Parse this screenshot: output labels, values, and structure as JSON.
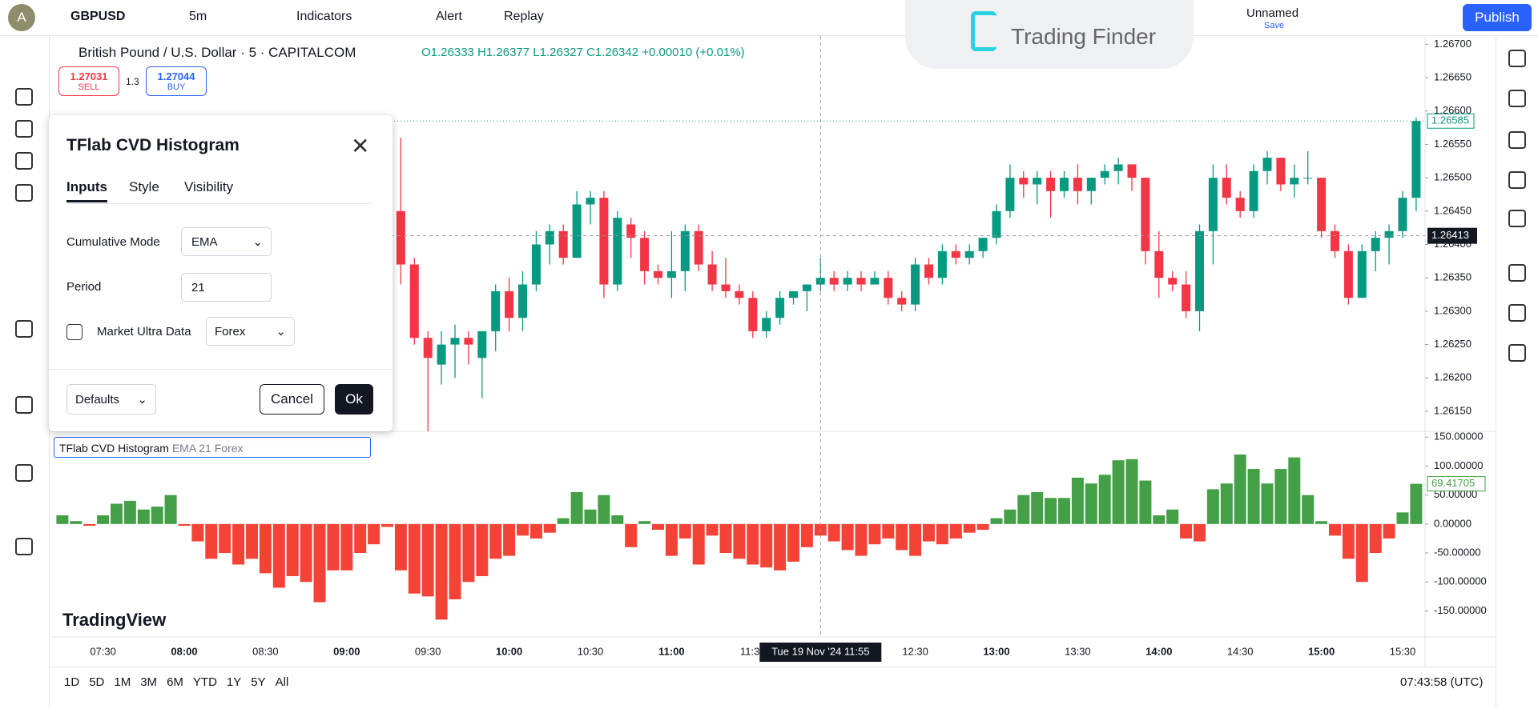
{
  "topbar": {
    "avatar": "A",
    "symbol": "GBPUSD",
    "interval": "5m",
    "indicators": "Indicators",
    "alert": "Alert",
    "replay": "Replay",
    "layout_name": "Unnamed",
    "layout_status": "Save",
    "publish": "Publish"
  },
  "watermark": "Trading Finder",
  "legend": {
    "title": "British Pound / U.S. Dollar · 5 · CAPITALCOM",
    "ohlc": "O1.26333 H1.26377 L1.26327 C1.26342 +0.00010 (+0.01%)",
    "sell_price": "1.27031",
    "sell": "SELL",
    "spread": "1.3",
    "buy_price": "1.27044",
    "buy": "BUY"
  },
  "dialog": {
    "title": "TFlab CVD Histogram",
    "tabs": [
      "Inputs",
      "Style",
      "Visibility"
    ],
    "fields": [
      {
        "label": "Cumulative Mode",
        "value": "EMA"
      },
      {
        "label": "Period",
        "value": "21"
      },
      {
        "label": "Market Ultra Data",
        "value": "Forex"
      }
    ],
    "defaults": "Defaults",
    "cancel": "Cancel",
    "ok": "Ok"
  },
  "indicator_legend": {
    "name": "TFlab CVD Histogram",
    "params": "EMA 21 Forex"
  },
  "logo": "TradingView",
  "bottombar": {
    "ranges": [
      "1D",
      "5D",
      "1M",
      "3M",
      "6M",
      "YTD",
      "1Y",
      "5Y",
      "All"
    ],
    "clock": "07:43:58 (UTC)"
  },
  "chart_data": [
    {
      "type": "candlestick",
      "up_color": "#089981",
      "down_color": "#f23645",
      "x": [
        "07:15",
        "07:20",
        "07:25",
        "07:30",
        "07:35",
        "07:40",
        "07:45",
        "07:50",
        "07:55",
        "08:00",
        "08:05",
        "08:10",
        "08:15",
        "08:20",
        "08:25",
        "08:30",
        "08:35",
        "08:40",
        "08:45",
        "08:50",
        "08:55",
        "09:00",
        "09:05",
        "09:10",
        "09:15",
        "09:20",
        "09:25",
        "09:30",
        "09:35",
        "09:40",
        "09:45",
        "09:50",
        "09:55",
        "10:00",
        "10:05",
        "10:10",
        "10:15",
        "10:20",
        "10:25",
        "10:30",
        "10:35",
        "10:40",
        "10:45",
        "10:50",
        "10:55",
        "11:00",
        "11:05",
        "11:10",
        "11:15",
        "11:20",
        "11:25",
        "11:30",
        "11:35",
        "11:40",
        "11:45",
        "11:50",
        "11:55",
        "12:00",
        "12:05",
        "12:10",
        "12:15",
        "12:20",
        "12:25",
        "12:30",
        "12:35",
        "12:40",
        "12:45",
        "12:50",
        "12:55",
        "13:00",
        "13:05",
        "13:10",
        "13:15",
        "13:20",
        "13:25",
        "13:30",
        "13:35",
        "13:40",
        "13:45",
        "13:50",
        "13:55",
        "14:00",
        "14:05",
        "14:10",
        "14:15",
        "14:20",
        "14:25",
        "14:30",
        "14:35",
        "14:40",
        "14:45",
        "14:50",
        "14:55",
        "15:00",
        "15:05",
        "15:10",
        "15:15",
        "15:20",
        "15:25",
        "15:30",
        "15:35"
      ],
      "ohlc": [
        null,
        null,
        null,
        null,
        null,
        null,
        null,
        null,
        null,
        null,
        null,
        null,
        null,
        null,
        null,
        null,
        null,
        null,
        null,
        null,
        null,
        null,
        null,
        null,
        null,
        [
          1.2645,
          1.2656,
          1.2634,
          1.2637
        ],
        [
          1.2637,
          1.2638,
          1.2625,
          1.2626
        ],
        [
          1.2626,
          1.2627,
          1.2612,
          1.2623
        ],
        [
          1.2622,
          1.2627,
          1.2619,
          1.2625
        ],
        [
          1.2625,
          1.2628,
          1.262,
          1.2626
        ],
        [
          1.2626,
          1.2627,
          1.2622,
          1.2625
        ],
        [
          1.2623,
          1.2627,
          1.2617,
          1.2627
        ],
        [
          1.2627,
          1.2634,
          1.2624,
          1.2633
        ],
        [
          1.2633,
          1.2635,
          1.2627,
          1.2629
        ],
        [
          1.2629,
          1.2636,
          1.2627,
          1.2634
        ],
        [
          1.2634,
          1.2642,
          1.2633,
          1.264
        ],
        [
          1.264,
          1.2643,
          1.2637,
          1.2642
        ],
        [
          1.2642,
          1.2643,
          1.2637,
          1.2638
        ],
        [
          1.2638,
          1.2648,
          1.2638,
          1.2646
        ],
        [
          1.2646,
          1.2648,
          1.2643,
          1.2647
        ],
        [
          1.2647,
          1.2648,
          1.2632,
          1.2634
        ],
        [
          1.2634,
          1.2645,
          1.2633,
          1.2644
        ],
        [
          1.2643,
          1.2644,
          1.2638,
          1.2641
        ],
        [
          1.2641,
          1.2642,
          1.2634,
          1.2636
        ],
        [
          1.2636,
          1.2637,
          1.2634,
          1.2635
        ],
        [
          1.2635,
          1.2642,
          1.2632,
          1.2636
        ],
        [
          1.2636,
          1.2643,
          1.2633,
          1.2642
        ],
        [
          1.2642,
          1.2643,
          1.2636,
          1.2637
        ],
        [
          1.2637,
          1.2639,
          1.2633,
          1.2634
        ],
        [
          1.2634,
          1.2638,
          1.2632,
          1.2633
        ],
        [
          1.2633,
          1.2634,
          1.2631,
          1.2632
        ],
        [
          1.2632,
          1.2633,
          1.2626,
          1.2627
        ],
        [
          1.2627,
          1.263,
          1.2626,
          1.2629
        ],
        [
          1.2629,
          1.2633,
          1.2628,
          1.2632
        ],
        [
          1.2632,
          1.2633,
          1.2631,
          1.2633
        ],
        [
          1.2633,
          1.2634,
          1.263,
          1.2634
        ],
        [
          1.2634,
          1.2638,
          1.2633,
          1.2635
        ],
        [
          1.2635,
          1.2636,
          1.2633,
          1.2634
        ],
        [
          1.2634,
          1.2636,
          1.2633,
          1.2635
        ],
        [
          1.2635,
          1.2636,
          1.2633,
          1.2634
        ],
        [
          1.2634,
          1.2636,
          1.2634,
          1.2635
        ],
        [
          1.2635,
          1.2636,
          1.2631,
          1.2632
        ],
        [
          1.2632,
          1.2633,
          1.263,
          1.2631
        ],
        [
          1.2631,
          1.2638,
          1.263,
          1.2637
        ],
        [
          1.2637,
          1.2638,
          1.2634,
          1.2635
        ],
        [
          1.2635,
          1.264,
          1.2634,
          1.2639
        ],
        [
          1.2639,
          1.264,
          1.2637,
          1.2638
        ],
        [
          1.2638,
          1.264,
          1.2637,
          1.2639
        ],
        [
          1.2639,
          1.2641,
          1.2638,
          1.2641
        ],
        [
          1.2641,
          1.2646,
          1.264,
          1.2645
        ],
        [
          1.2645,
          1.2652,
          1.2644,
          1.265
        ],
        [
          1.265,
          1.2651,
          1.2647,
          1.2649
        ],
        [
          1.2649,
          1.2651,
          1.2646,
          1.265
        ],
        [
          1.265,
          1.2651,
          1.2644,
          1.2648
        ],
        [
          1.2648,
          1.2651,
          1.2647,
          1.265
        ],
        [
          1.265,
          1.2652,
          1.2646,
          1.2648
        ],
        [
          1.2648,
          1.265,
          1.2646,
          1.265
        ],
        [
          1.265,
          1.2652,
          1.2649,
          1.2651
        ],
        [
          1.2651,
          1.2653,
          1.2649,
          1.2652
        ],
        [
          1.2652,
          1.2652,
          1.2648,
          1.265
        ],
        [
          1.265,
          1.265,
          1.2637,
          1.2639
        ],
        [
          1.2639,
          1.2642,
          1.2632,
          1.2635
        ],
        [
          1.2635,
          1.2636,
          1.2633,
          1.2634
        ],
        [
          1.2634,
          1.2636,
          1.2629,
          1.263
        ],
        [
          1.263,
          1.2643,
          1.2627,
          1.2642
        ],
        [
          1.2642,
          1.2652,
          1.2637,
          1.265
        ],
        [
          1.265,
          1.2652,
          1.2646,
          1.2647
        ],
        [
          1.2647,
          1.2648,
          1.2644,
          1.2645
        ],
        [
          1.2645,
          1.2652,
          1.2644,
          1.2651
        ],
        [
          1.2651,
          1.2654,
          1.2649,
          1.2653
        ],
        [
          1.2653,
          1.2653,
          1.2648,
          1.2649
        ],
        [
          1.2649,
          1.2652,
          1.2647,
          1.265
        ],
        [
          1.265,
          1.2654,
          1.2649,
          1.265
        ],
        [
          1.265,
          1.265,
          1.2641,
          1.2642
        ],
        [
          1.2642,
          1.2643,
          1.2638,
          1.2639
        ],
        [
          1.2639,
          1.264,
          1.2631,
          1.2632
        ],
        [
          1.2632,
          1.264,
          1.2632,
          1.2639
        ],
        [
          1.2639,
          1.2642,
          1.2636,
          1.2641
        ],
        [
          1.2641,
          1.2643,
          1.2637,
          1.2642
        ],
        [
          1.2642,
          1.2648,
          1.2641,
          1.2647
        ],
        [
          1.2647,
          1.2659,
          1.2645,
          1.26585
        ]
      ],
      "ylim": [
        1.2612,
        1.2671
      ],
      "yticks": [
        {
          "value": 1.267,
          "label": "1.26700"
        },
        {
          "value": 1.2665,
          "label": "1.26650"
        },
        {
          "value": 1.266,
          "label": "1.26600"
        },
        {
          "value": 1.2655,
          "label": "1.26550"
        },
        {
          "value": 1.265,
          "label": "1.26500"
        },
        {
          "value": 1.2645,
          "label": "1.26450"
        },
        {
          "value": 1.264,
          "label": "1.26400"
        },
        {
          "value": 1.2635,
          "label": "1.26350"
        },
        {
          "value": 1.263,
          "label": "1.26300"
        },
        {
          "value": 1.2625,
          "label": "1.26250"
        },
        {
          "value": 1.262,
          "label": "1.26200"
        },
        {
          "value": 1.2615,
          "label": "1.26150"
        }
      ],
      "last_price": {
        "value": 1.26585,
        "label": "1.26585"
      },
      "crosshair": {
        "x": "11:55",
        "label": "Tue 19 Nov '24  11:55",
        "y": {
          "value": 1.26413,
          "label": "1.26413"
        }
      },
      "grid": false
    },
    {
      "type": "bar",
      "positive_color": "#43a047",
      "negative_color": "#f44336",
      "values": [
        15,
        5,
        -3,
        15,
        35,
        40,
        25,
        30,
        50,
        -3,
        -30,
        -60,
        -50,
        -70,
        -60,
        -85,
        -110,
        -90,
        -100,
        -135,
        -80,
        -80,
        -50,
        -35,
        -5,
        -80,
        -120,
        -125,
        -165,
        -130,
        -100,
        -90,
        -60,
        -55,
        -20,
        -25,
        -15,
        10,
        55,
        25,
        50,
        15,
        -40,
        5,
        -10,
        -55,
        -25,
        -70,
        -20,
        -50,
        -60,
        -70,
        -75,
        -80,
        -65,
        -40,
        -20,
        -30,
        -45,
        -55,
        -35,
        -25,
        -45,
        -55,
        -30,
        -35,
        -25,
        -15,
        -10,
        10,
        25,
        50,
        55,
        45,
        45,
        80,
        70,
        85,
        110,
        112,
        75,
        15,
        25,
        -25,
        -30,
        60,
        70,
        120,
        95,
        70,
        95,
        115,
        50,
        5,
        -20,
        -60,
        -100,
        -50,
        -25,
        20,
        69.41705
      ],
      "value_labels": {
        "100": "69.41705"
      },
      "ylim": [
        -195,
        160
      ],
      "yticks": [
        {
          "value": 150,
          "label": "150.00000"
        },
        {
          "value": 100,
          "label": "100.00000"
        },
        {
          "value": 50,
          "label": "50.00000"
        },
        {
          "value": 0,
          "label": "0.00000"
        },
        {
          "value": -50,
          "label": "-50.00000"
        },
        {
          "value": -100,
          "label": "-100.00000"
        },
        {
          "value": -150,
          "label": "-150.00000"
        }
      ],
      "xticks": [
        "07:30",
        "08:00",
        "08:30",
        "09:00",
        "09:30",
        "10:00",
        "10:30",
        "11:00",
        "11:30",
        "12:30",
        "13:00",
        "13:30",
        "14:00",
        "14:30",
        "15:00",
        "15:30"
      ],
      "grid": false
    }
  ]
}
